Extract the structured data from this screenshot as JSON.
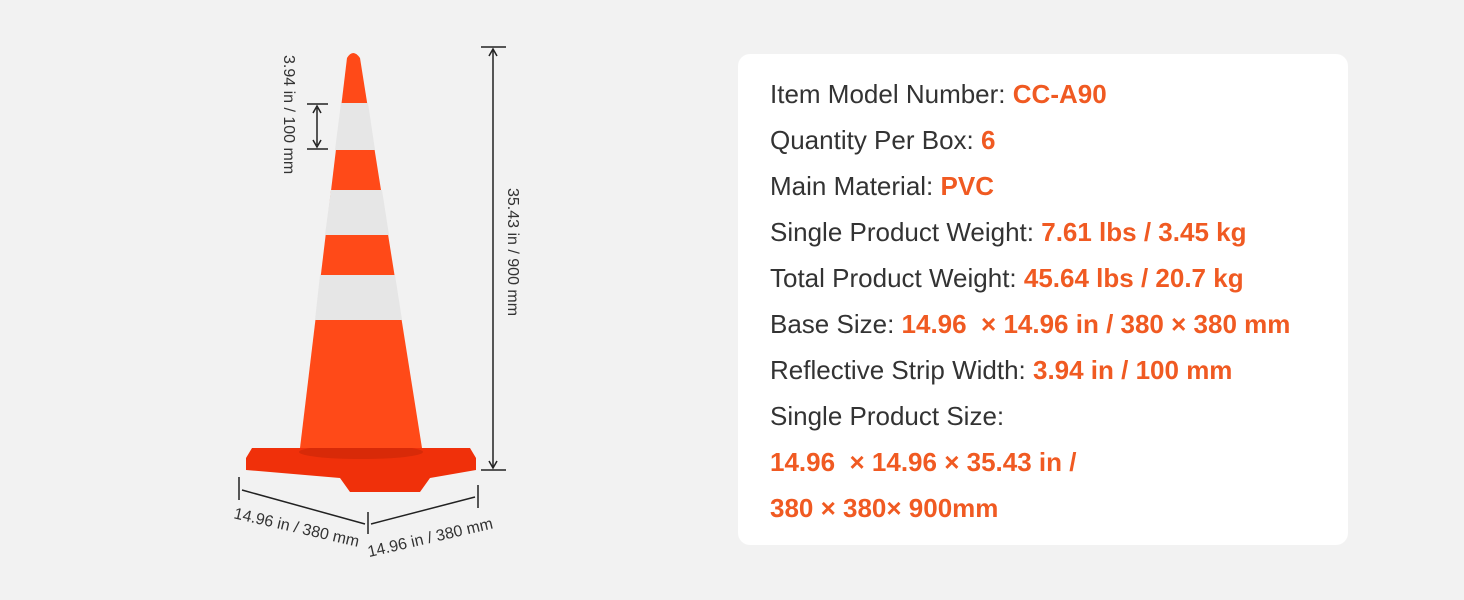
{
  "dimensions": {
    "strip_height": "3.94 in / 100 mm",
    "height": "35.43 in / 900 mm",
    "base_depth": "14.96 in / 380 mm",
    "base_width": "14.96 in / 380 mm"
  },
  "specs": [
    {
      "label": "Item Model Number:",
      "value": "CC-A90"
    },
    {
      "label": "Quantity Per Box:",
      "value": "6"
    },
    {
      "label": "Main Material:",
      "value": "PVC"
    },
    {
      "label": "Single Product Weight:",
      "value": "7.61 lbs / 3.45 kg"
    },
    {
      "label": "Total Product Weight:",
      "value": "45.64 lbs / 20.7 kg"
    },
    {
      "label": "Base Size:",
      "value": "14.96  × 14.96 in / 380 × 380 mm"
    },
    {
      "label": "Reflective Strip Width:",
      "value": "3.94 in / 100 mm"
    },
    {
      "label": "Single Product Size:",
      "value_lines": [
        "14.96  × 14.96 × 35.43 in /",
        "380 × 380× 900mm"
      ]
    }
  ]
}
